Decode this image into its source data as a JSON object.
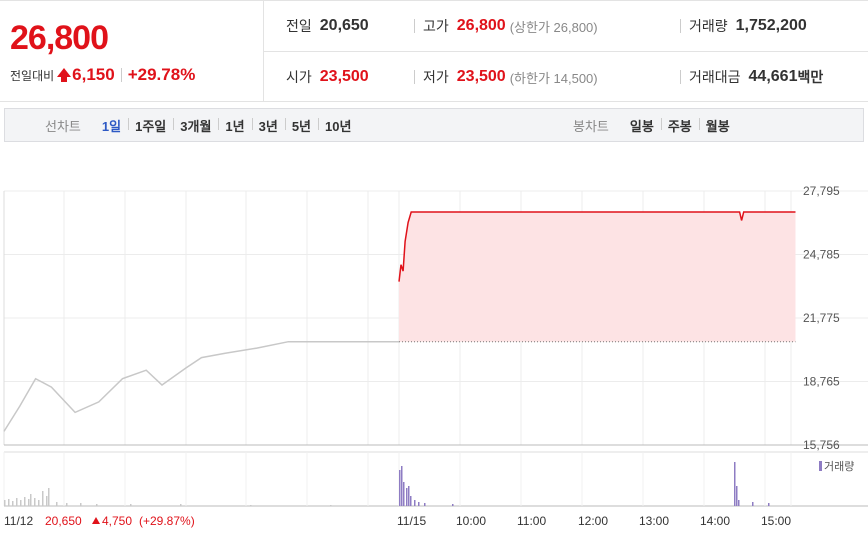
{
  "quote": {
    "price": "26,800",
    "change_label": "전일대비",
    "change_value": "6,150",
    "change_pct": "+29.78%",
    "prev_close_label": "전일",
    "prev_close": "20,650",
    "high_label": "고가",
    "high": "26,800",
    "upper_limit": "(상한가 26,800)",
    "volume_label": "거래량",
    "volume": "1,752,200",
    "open_label": "시가",
    "open": "23,500",
    "low_label": "저가",
    "low": "23,500",
    "lower_limit": "(하한가 14,500)",
    "amount_label": "거래대금",
    "amount": "44,661",
    "amount_unit": "백만"
  },
  "line_tabs": {
    "label": "선차트",
    "items": [
      "1일",
      "1주일",
      "3개월",
      "1년",
      "3년",
      "5년",
      "10년"
    ],
    "active": 0
  },
  "candle_tabs": {
    "label": "봉차트",
    "items": [
      "일봉",
      "주봉",
      "월봉"
    ]
  },
  "colors": {
    "up": "#e0121a",
    "accent": "#2d59c4",
    "fill": "#fde3e4",
    "volume": "#8e7cc3",
    "prev_line": "#c8c8c8"
  },
  "chart_data": {
    "type": "line",
    "y_ticks": [
      "27,795",
      "24,785",
      "21,775",
      "18,765",
      "15,756"
    ],
    "ylim": [
      15756,
      27795
    ],
    "x_labels": [
      "11/12",
      "11/15",
      "10:00",
      "11:00",
      "12:00",
      "13:00",
      "14:00",
      "15:00"
    ],
    "prev_day_caption": {
      "close": "20,650",
      "change": "4,750",
      "pct": "(+29.87%)"
    },
    "volume_legend": "거래량",
    "prev_day_series": {
      "x": [
        0,
        0.04,
        0.08,
        0.12,
        0.18,
        0.24,
        0.3,
        0.36,
        0.4,
        0.46,
        0.5,
        0.56,
        0.64,
        0.72,
        1
      ],
      "values": [
        16400,
        17600,
        18900,
        18500,
        17300,
        17800,
        18900,
        19300,
        18600,
        19400,
        19900,
        20100,
        20350,
        20650,
        20650
      ]
    },
    "today_series": {
      "time": [
        "09:00",
        "09:02",
        "09:04",
        "09:06",
        "09:09",
        "09:12",
        "09:20",
        "10:00",
        "11:00",
        "12:00",
        "13:00",
        "14:00",
        "14:35",
        "14:37",
        "14:39",
        "15:00",
        "15:30"
      ],
      "values": [
        23500,
        24300,
        24000,
        25400,
        26300,
        26800,
        26800,
        26800,
        26800,
        26800,
        26800,
        26800,
        26800,
        26400,
        26800,
        26800,
        26800
      ]
    },
    "baseline": 20650
  }
}
